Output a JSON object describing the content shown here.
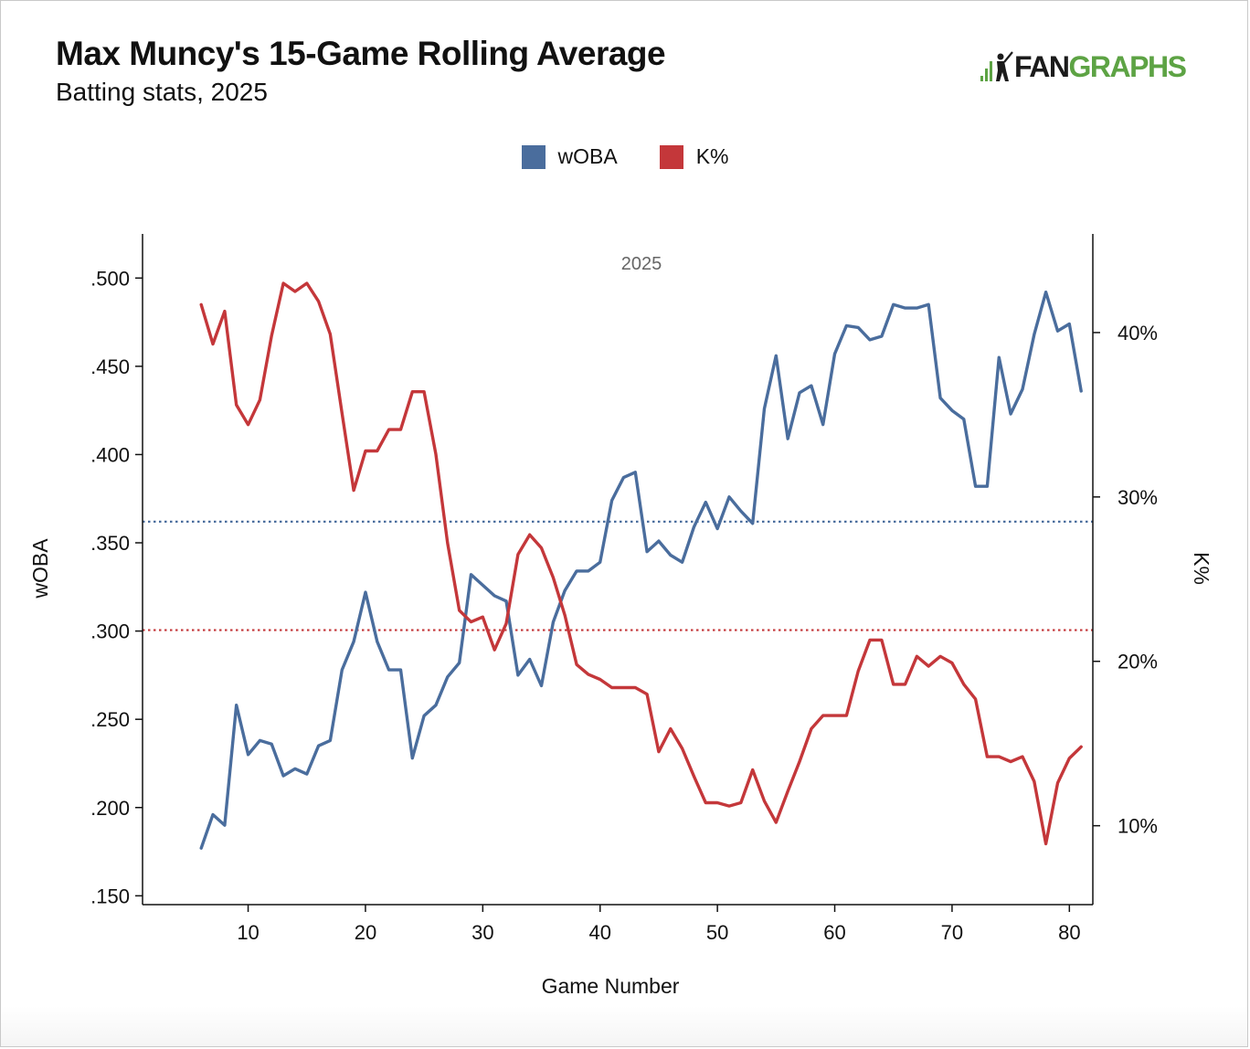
{
  "header": {
    "title": "Max Muncy's 15-Game Rolling Average",
    "subtitle": "Batting stats, 2025",
    "logo_text_dark": "FAN",
    "logo_text_green": "GRAPHS"
  },
  "colors": {
    "woba": "#4a6d9d",
    "k_pct": "#c4373a",
    "logo_green": "#5da344"
  },
  "legend": [
    {
      "label": "wOBA",
      "color": "#4a6d9d"
    },
    {
      "label": "K%",
      "color": "#c4373a"
    }
  ],
  "chart_data": {
    "type": "line",
    "panel_label": "2025",
    "xlabel": "Game Number",
    "ylabel_left": "wOBA",
    "ylabel_right": "K%",
    "xlim": [
      1,
      82
    ],
    "x_ticks": [
      10,
      20,
      30,
      40,
      50,
      60,
      70,
      80
    ],
    "ylim_left": [
      0.145,
      0.525
    ],
    "y_ticks_left": [
      0.15,
      0.2,
      0.25,
      0.3,
      0.35,
      0.4,
      0.45,
      0.5
    ],
    "y_tick_labels_left": [
      ".150",
      ".200",
      ".250",
      ".300",
      ".350",
      ".400",
      ".450",
      ".500"
    ],
    "ylim_right": [
      5.2,
      46
    ],
    "y_ticks_right": [
      10,
      20,
      30,
      40
    ],
    "y_tick_labels_right": [
      "10%",
      "20%",
      "30%",
      "40%"
    ],
    "reference_lines": [
      {
        "series": "wOBA",
        "axis": "left",
        "value": 0.362
      },
      {
        "series": "K%",
        "axis": "right",
        "value": 21.9
      }
    ],
    "x": [
      6,
      7,
      8,
      9,
      10,
      11,
      12,
      13,
      14,
      15,
      16,
      17,
      18,
      19,
      20,
      21,
      22,
      23,
      24,
      25,
      26,
      27,
      28,
      29,
      30,
      31,
      32,
      33,
      34,
      35,
      36,
      37,
      38,
      39,
      40,
      41,
      42,
      43,
      44,
      45,
      46,
      47,
      48,
      49,
      50,
      51,
      52,
      53,
      54,
      55,
      56,
      57,
      58,
      59,
      60,
      61,
      62,
      63,
      64,
      65,
      66,
      67,
      68,
      69,
      70,
      71,
      72,
      73,
      74,
      75,
      76,
      77,
      78,
      79,
      80,
      81
    ],
    "series": [
      {
        "name": "wOBA",
        "axis": "left",
        "color": "#4a6d9d",
        "values": [
          0.177,
          0.196,
          0.19,
          0.258,
          0.23,
          0.238,
          0.236,
          0.218,
          0.222,
          0.219,
          0.235,
          0.238,
          0.278,
          0.294,
          0.322,
          0.294,
          0.278,
          0.278,
          0.228,
          0.252,
          0.258,
          0.274,
          0.282,
          0.332,
          0.326,
          0.32,
          0.317,
          0.275,
          0.284,
          0.269,
          0.305,
          0.323,
          0.334,
          0.334,
          0.339,
          0.374,
          0.387,
          0.39,
          0.345,
          0.351,
          0.343,
          0.339,
          0.359,
          0.373,
          0.358,
          0.376,
          0.368,
          0.361,
          0.426,
          0.456,
          0.409,
          0.435,
          0.439,
          0.417,
          0.457,
          0.473,
          0.472,
          0.465,
          0.467,
          0.485,
          0.483,
          0.483,
          0.485,
          0.432,
          0.425,
          0.42,
          0.382,
          0.382,
          0.455,
          0.423,
          0.437,
          0.468,
          0.492,
          0.47,
          0.474,
          0.436
        ]
      },
      {
        "name": "K%",
        "axis": "right",
        "color": "#c4373a",
        "values": [
          41.7,
          39.3,
          41.3,
          35.6,
          34.4,
          35.9,
          39.8,
          43.0,
          42.5,
          43.0,
          41.9,
          39.9,
          35.1,
          30.4,
          32.8,
          32.8,
          34.1,
          34.1,
          36.4,
          36.4,
          32.6,
          27.2,
          23.1,
          22.4,
          22.7,
          20.7,
          22.3,
          26.5,
          27.7,
          26.9,
          25.1,
          22.8,
          19.8,
          19.2,
          18.9,
          18.4,
          18.4,
          18.4,
          18.0,
          14.5,
          15.9,
          14.7,
          13.0,
          11.4,
          11.4,
          11.2,
          11.4,
          13.4,
          11.5,
          10.2,
          12.1,
          13.9,
          15.9,
          16.7,
          16.7,
          16.7,
          19.4,
          21.3,
          21.3,
          18.6,
          18.6,
          20.3,
          19.7,
          20.3,
          19.9,
          18.6,
          17.7,
          14.2,
          14.2,
          13.9,
          14.2,
          12.7,
          8.9,
          12.6,
          14.1,
          14.8
        ]
      }
    ]
  }
}
